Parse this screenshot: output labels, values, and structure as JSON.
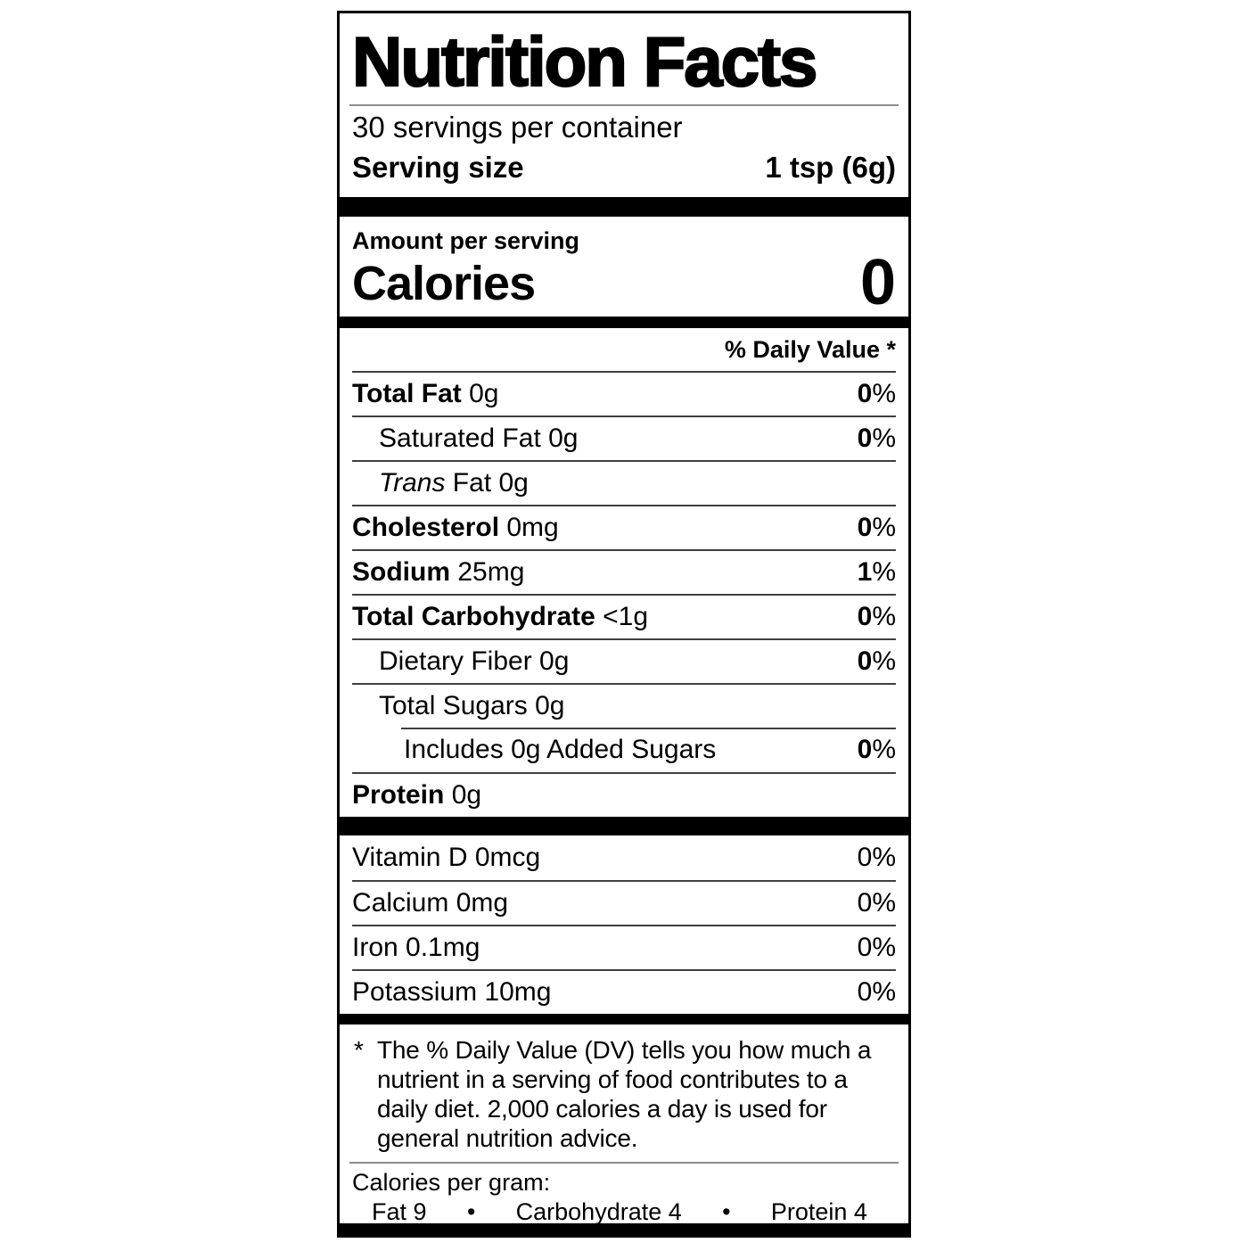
{
  "title": "Nutrition Facts",
  "servings_per_container": "30 servings per container",
  "serving_size": {
    "label": "Serving size",
    "value": "1 tsp (6g)"
  },
  "amount_per_serving": "Amount per serving",
  "calories": {
    "label": "Calories",
    "value": "0"
  },
  "daily_value_header": "% Daily Value *",
  "nutrients": [
    {
      "name": "Total Fat",
      "bold": true,
      "italic": false,
      "amount": "0g",
      "dv": "0%",
      "indent": 0,
      "sep_indent": false
    },
    {
      "name": "Saturated Fat",
      "bold": false,
      "italic": false,
      "amount": "0g",
      "dv": "0%",
      "indent": 1,
      "sep_indent": false
    },
    {
      "name": "Trans",
      "bold": false,
      "italic": true,
      "amount": "Fat 0g",
      "dv": "",
      "indent": 1,
      "sep_indent": false
    },
    {
      "name": "Cholesterol",
      "bold": true,
      "italic": false,
      "amount": "0mg",
      "dv": "0%",
      "indent": 0,
      "sep_indent": false
    },
    {
      "name": "Sodium",
      "bold": true,
      "italic": false,
      "amount": "25mg",
      "dv": "1%",
      "indent": 0,
      "sep_indent": false
    },
    {
      "name": "Total Carbohydrate",
      "bold": true,
      "italic": false,
      "amount": "<1g",
      "dv": "0%",
      "indent": 0,
      "sep_indent": false
    },
    {
      "name": "Dietary Fiber",
      "bold": false,
      "italic": false,
      "amount": "0g",
      "dv": "0%",
      "indent": 1,
      "sep_indent": false
    },
    {
      "name": "Total Sugars",
      "bold": false,
      "italic": false,
      "amount": "0g",
      "dv": "",
      "indent": 1,
      "sep_indent": false
    },
    {
      "name": "Includes 0g Added Sugars",
      "bold": false,
      "italic": false,
      "amount": "",
      "dv": "0%",
      "indent": 2,
      "sep_indent": true
    },
    {
      "name": "Protein",
      "bold": true,
      "italic": false,
      "amount": "0g",
      "dv": "",
      "indent": 0,
      "sep_indent": false
    }
  ],
  "micronutrients": [
    {
      "name": "Vitamin D",
      "amount": "0mcg",
      "dv": "0%"
    },
    {
      "name": "Calcium",
      "amount": "0mg",
      "dv": "0%"
    },
    {
      "name": "Iron",
      "amount": "0.1mg",
      "dv": "0%"
    },
    {
      "name": "Potassium",
      "amount": "10mg",
      "dv": "0%"
    }
  ],
  "footnote": {
    "marker": "*",
    "lines": [
      "The % Daily Value (DV) tells you how much a",
      "nutrient in a serving of food contributes to a",
      "daily diet. 2,000 calories a day is used for",
      "general nutrition advice."
    ]
  },
  "calories_per_gram": {
    "label": "Calories per gram:",
    "bullet": "•",
    "items": [
      {
        "name": "Fat",
        "value": "9"
      },
      {
        "name": "Carbohydrate",
        "value": "4"
      },
      {
        "name": "Protein",
        "value": "4"
      }
    ]
  },
  "colors": {
    "text": "#000000",
    "background": "#ffffff",
    "bar": "#000000",
    "rule_dark": "#3f3f3f",
    "rule_light": "#8c8c8c"
  }
}
